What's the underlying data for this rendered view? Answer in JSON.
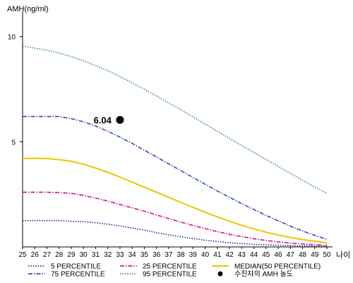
{
  "chart_data": {
    "type": "line",
    "ylabel": "AMH(ng/ml)",
    "xlabel": "나이",
    "xlim": [
      25,
      50
    ],
    "ylim": [
      0,
      11
    ],
    "x": [
      25,
      26,
      27,
      28,
      29,
      30,
      31,
      32,
      33,
      34,
      35,
      36,
      37,
      38,
      39,
      40,
      41,
      42,
      43,
      44,
      45,
      46,
      47,
      48,
      49,
      50
    ],
    "yticks": [
      "5",
      "10"
    ],
    "grid": false,
    "legend_position": "bottom",
    "series": [
      {
        "name": "5 PERCENTILE",
        "color": "#1b1b8f",
        "style": "dotted",
        "values": [
          1.25,
          1.25,
          1.25,
          1.25,
          1.22,
          1.2,
          1.15,
          1.08,
          1.0,
          0.9,
          0.8,
          0.68,
          0.58,
          0.48,
          0.4,
          0.32,
          0.26,
          0.2,
          0.16,
          0.12,
          0.1,
          0.08,
          0.06,
          0.05,
          0.04,
          0.03
        ]
      },
      {
        "name": "25 PERCENTILE",
        "color": "#d0168e",
        "style": "dashdot",
        "values": [
          2.6,
          2.6,
          2.6,
          2.58,
          2.55,
          2.45,
          2.32,
          2.18,
          2.02,
          1.86,
          1.7,
          1.52,
          1.35,
          1.18,
          1.02,
          0.87,
          0.73,
          0.6,
          0.49,
          0.39,
          0.31,
          0.24,
          0.18,
          0.14,
          0.1,
          0.08
        ]
      },
      {
        "name": "MEDIAN(50 PERCENTILE)",
        "color": "#f2c400",
        "style": "solid",
        "values": [
          4.2,
          4.22,
          4.2,
          4.15,
          4.07,
          3.93,
          3.75,
          3.55,
          3.32,
          3.08,
          2.84,
          2.6,
          2.36,
          2.12,
          1.88,
          1.65,
          1.43,
          1.22,
          1.03,
          0.86,
          0.7,
          0.57,
          0.45,
          0.35,
          0.27,
          0.2
        ]
      },
      {
        "name": "75 PERCENTILE",
        "color": "#2e4fb5",
        "style": "dashdot",
        "values": [
          6.2,
          6.2,
          6.2,
          6.2,
          6.1,
          5.95,
          5.75,
          5.5,
          5.22,
          4.92,
          4.6,
          4.28,
          3.95,
          3.63,
          3.3,
          2.98,
          2.66,
          2.36,
          2.06,
          1.78,
          1.5,
          1.24,
          0.99,
          0.76,
          0.55,
          0.36
        ]
      },
      {
        "name": "95 PERCENTILE",
        "color": "#2e8b57",
        "style": "dotted",
        "values": [
          9.55,
          9.45,
          9.35,
          9.22,
          9.05,
          8.85,
          8.62,
          8.38,
          8.1,
          7.8,
          7.5,
          7.18,
          6.85,
          6.52,
          6.18,
          5.84,
          5.5,
          5.16,
          4.82,
          4.49,
          4.16,
          3.83,
          3.5,
          3.17,
          2.85,
          2.55
        ]
      }
    ],
    "annotation": {
      "name": "수진자의 AMH 농도",
      "x": 33,
      "y": 6.04,
      "label": "6.04",
      "color": "#000000"
    }
  }
}
